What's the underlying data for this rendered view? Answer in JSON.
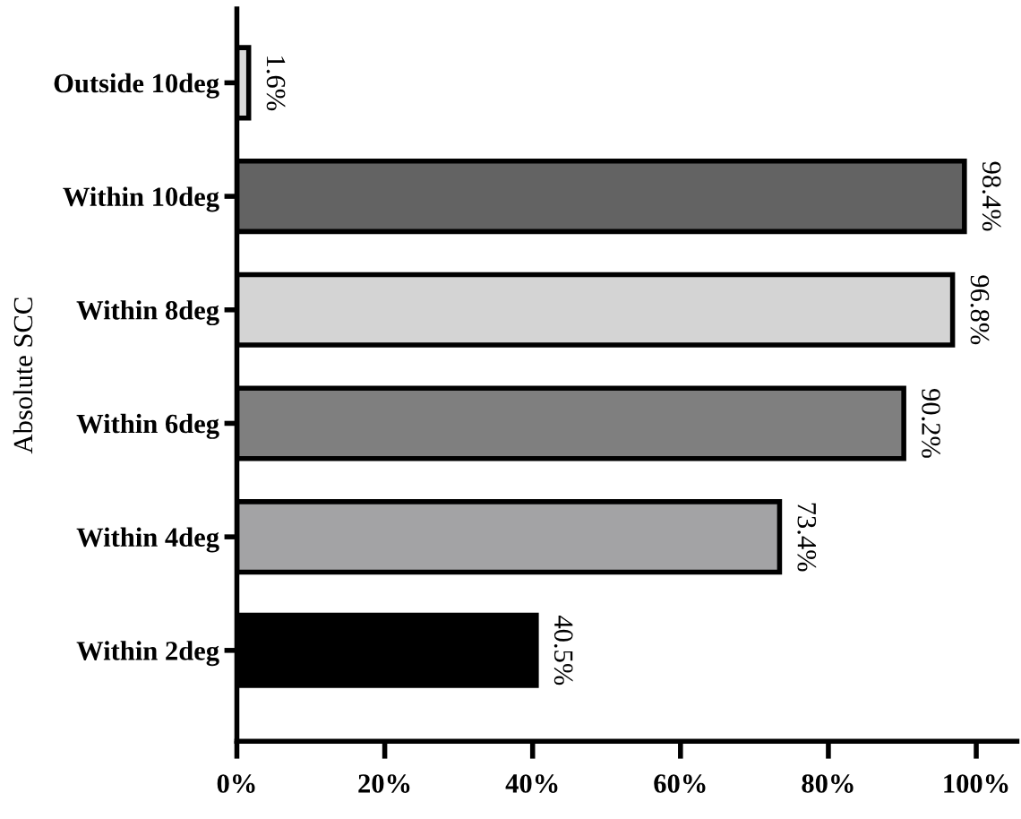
{
  "chart_data": {
    "type": "bar",
    "orientation": "horizontal",
    "ylabel": "Absolute SCC",
    "categories": [
      "Outside 10deg",
      "Within 10deg",
      "Within 8deg",
      "Within 6deg",
      "Within 4deg",
      "Within 2deg"
    ],
    "values": [
      1.6,
      98.4,
      96.8,
      90.2,
      73.4,
      40.5
    ],
    "colors": [
      "#d9d9d9",
      "#636363",
      "#d4d4d4",
      "#7f7f7f",
      "#a3a3a5",
      "#000000"
    ],
    "value_labels": [
      "1.6%",
      "98.4%",
      "96.8%",
      "90.2%",
      "73.4%",
      "40.5%"
    ],
    "xlim": [
      0,
      105.5
    ],
    "xticks": [
      {
        "value": 0,
        "label": "0%"
      },
      {
        "value": 20,
        "label": "20%"
      },
      {
        "value": 40,
        "label": "40%"
      },
      {
        "value": 60,
        "label": "60%"
      },
      {
        "value": 80,
        "label": "80%"
      },
      {
        "value": 100,
        "label": "100%"
      }
    ],
    "grid": false,
    "legend": false
  }
}
